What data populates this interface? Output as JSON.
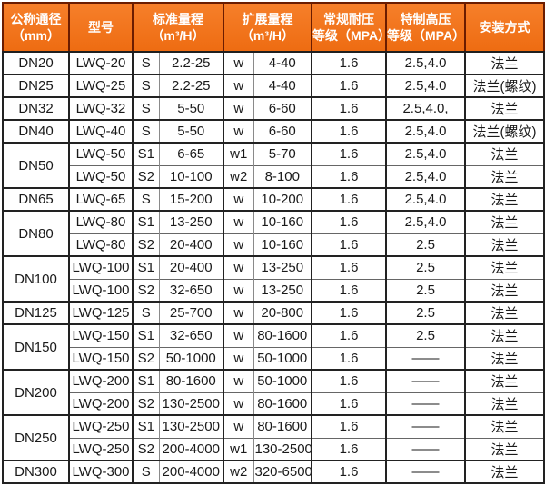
{
  "header": {
    "columns": [
      {
        "line1": "公称通径",
        "line2": "（mm）"
      },
      {
        "line1": "型号",
        "line2": ""
      },
      {
        "line1": "标准量程",
        "line2": "（m³/H）"
      },
      {
        "line1": "扩展量程",
        "line2": "（m³/H）"
      },
      {
        "line1": "常规耐压",
        "line2": "等级（MPA）"
      },
      {
        "line1": "特制高压",
        "line2": "等级（MPA）"
      },
      {
        "line1": "安装方式",
        "line2": ""
      }
    ]
  },
  "colors": {
    "header_bg": "#f2731d",
    "header_border": "#6b1c00",
    "header_text": "#ffffff",
    "grid_minor": "#8a8a8a",
    "grid_major": "#222222",
    "body_text": "#1a1a1a"
  },
  "rows": [
    {
      "group_start": true,
      "dn": "DN20",
      "dn_rowspan": 1,
      "model": "LWQ-20",
      "s": "S",
      "std": "2.2-25",
      "w": "w",
      "ext": "4-40",
      "normal": "1.6",
      "high": "2.5,4.0",
      "install": "法兰"
    },
    {
      "group_start": true,
      "dn": "DN25",
      "dn_rowspan": 1,
      "model": "LWQ-25",
      "s": "S",
      "std": "2.2-25",
      "w": "w",
      "ext": "4-40",
      "normal": "1.6",
      "high": "2.5,4.0",
      "install": "法兰(螺纹)"
    },
    {
      "group_start": true,
      "dn": "DN32",
      "dn_rowspan": 1,
      "model": "LWQ-32",
      "s": "S",
      "std": "5-50",
      "w": "w",
      "ext": "6-60",
      "normal": "1.6",
      "high": "2.5,4.0,",
      "install": "法兰"
    },
    {
      "group_start": true,
      "dn": "DN40",
      "dn_rowspan": 1,
      "model": "LWQ-40",
      "s": "S",
      "std": "5-50",
      "w": "w",
      "ext": "6-60",
      "normal": "1.6",
      "high": "2.5,4.0",
      "install": "法兰(螺纹)"
    },
    {
      "group_start": true,
      "dn": "DN50",
      "dn_rowspan": 2,
      "model": "LWQ-50",
      "s": "S1",
      "std": "6-65",
      "w": "w1",
      "ext": "5-70",
      "normal": "1.6",
      "high": "2.5,4.0",
      "install": "法兰"
    },
    {
      "group_start": false,
      "model": "LWQ-50",
      "s": "S2",
      "std": "10-100",
      "w": "w2",
      "ext": "8-100",
      "normal": "1.6",
      "high": "2.5,4.0",
      "install": "法兰"
    },
    {
      "group_start": true,
      "dn": "DN65",
      "dn_rowspan": 1,
      "model": "LWQ-65",
      "s": "S",
      "std": "15-200",
      "w": "w",
      "ext": "10-200",
      "normal": "1.6",
      "high": "2.5,4.0",
      "install": "法兰"
    },
    {
      "group_start": true,
      "dn": "DN80",
      "dn_rowspan": 2,
      "model": "LWQ-80",
      "s": "S1",
      "std": "13-250",
      "w": "w",
      "ext": "10-160",
      "normal": "1.6",
      "high": "2.5,4.0",
      "install": "法兰"
    },
    {
      "group_start": false,
      "model": "LWQ-80",
      "s": "S2",
      "std": "20-400",
      "w": "w",
      "ext": "10-160",
      "normal": "1.6",
      "high": "2.5",
      "install": "法兰"
    },
    {
      "group_start": true,
      "dn": "DN100",
      "dn_rowspan": 2,
      "model": "LWQ-100",
      "s": "S1",
      "std": "20-400",
      "w": "w",
      "ext": "13-250",
      "normal": "1.6",
      "high": "2.5",
      "install": "法兰"
    },
    {
      "group_start": false,
      "model": "LWQ-100",
      "s": "S2",
      "std": "32-650",
      "w": "w",
      "ext": "13-250",
      "normal": "1.6",
      "high": "2.5",
      "install": "法兰"
    },
    {
      "group_start": true,
      "dn": "DN125",
      "dn_rowspan": 1,
      "model": "LWQ-125",
      "s": "S",
      "std": "25-700",
      "w": "w",
      "ext": "20-800",
      "normal": "1.6",
      "high": "2.5",
      "install": "法兰"
    },
    {
      "group_start": true,
      "dn": "DN150",
      "dn_rowspan": 2,
      "model": "LWQ-150",
      "s": "S1",
      "std": "32-650",
      "w": "w",
      "ext": "80-1600",
      "normal": "1.6",
      "high": "2.5",
      "install": "法兰"
    },
    {
      "group_start": false,
      "model": "LWQ-150",
      "s": "S2",
      "std": "50-1000",
      "w": "w",
      "ext": "50-1000",
      "normal": "1.6",
      "high": "——",
      "install": "法兰"
    },
    {
      "group_start": true,
      "dn": "DN200",
      "dn_rowspan": 2,
      "model": "LWQ-200",
      "s": "S1",
      "std": "80-1600",
      "w": "w",
      "ext": "50-1000",
      "normal": "1.6",
      "high": "——",
      "install": "法兰"
    },
    {
      "group_start": false,
      "model": "LWQ-200",
      "s": "S2",
      "std": "130-2500",
      "w": "w",
      "ext": "80-1600",
      "normal": "1.6",
      "high": "——",
      "install": "法兰"
    },
    {
      "group_start": true,
      "dn": "DN250",
      "dn_rowspan": 2,
      "model": "LWQ-250",
      "s": "S1",
      "std": "130-2500",
      "w": "w",
      "ext": "80-1600",
      "normal": "1.6",
      "high": "——",
      "install": "法兰"
    },
    {
      "group_start": false,
      "model": "LWQ-250",
      "s": "S2",
      "std": "200-4000",
      "w": "w1",
      "ext": "130-2500",
      "normal": "1.6",
      "high": "——",
      "install": "法兰"
    },
    {
      "group_start": true,
      "dn": "DN300",
      "dn_rowspan": 1,
      "model": "LWQ-300",
      "s": "S",
      "std": "200-4000",
      "w": "w2",
      "ext": "320-6500",
      "normal": "1.6",
      "high": "——",
      "install": "法兰"
    }
  ]
}
